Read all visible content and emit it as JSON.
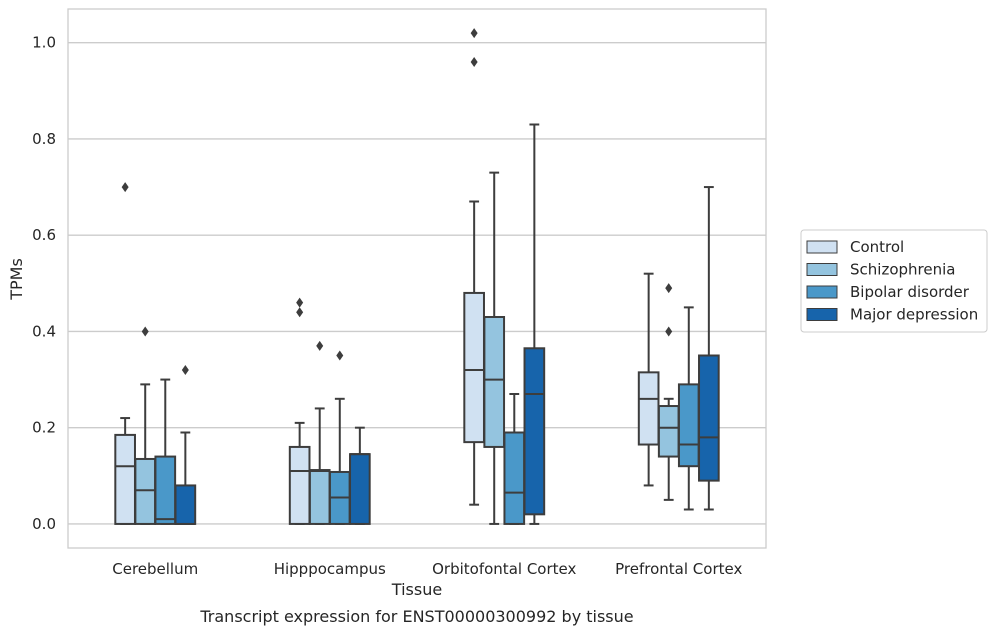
{
  "caption": "Transcript expression for ENST00000300992 by tissue",
  "chart_data": {
    "type": "box",
    "xlabel": "Tissue",
    "ylabel": "TPMs",
    "ylim": [
      -0.05,
      1.07
    ],
    "yticks": [
      0.0,
      0.2,
      0.4,
      0.6,
      0.8,
      1.0
    ],
    "ytick_labels": [
      "0.0",
      "0.2",
      "0.4",
      "0.6",
      "0.8",
      "1.0"
    ],
    "grid": "horizontal",
    "legend_position": "right",
    "categories": [
      "Cerebellum",
      "Hipppocampus",
      "Orbitofontal Cortex",
      "Prefrontal Cortex"
    ],
    "series": [
      {
        "name": "Control",
        "color": "#d0e1f2",
        "boxes": [
          {
            "whislo": 0.0,
            "q1": 0.0,
            "med": 0.12,
            "q3": 0.185,
            "whishi": 0.22,
            "fliers": [
              0.7
            ]
          },
          {
            "whislo": 0.0,
            "q1": 0.0,
            "med": 0.11,
            "q3": 0.16,
            "whishi": 0.21,
            "fliers": [
              0.44,
              0.46
            ]
          },
          {
            "whislo": 0.04,
            "q1": 0.17,
            "med": 0.32,
            "q3": 0.48,
            "whishi": 0.67,
            "fliers": [
              0.96,
              1.02
            ]
          },
          {
            "whislo": 0.08,
            "q1": 0.165,
            "med": 0.26,
            "q3": 0.315,
            "whishi": 0.52,
            "fliers": []
          }
        ]
      },
      {
        "name": "Schizophrenia",
        "color": "#94c4df",
        "boxes": [
          {
            "whislo": 0.0,
            "q1": 0.0,
            "med": 0.07,
            "q3": 0.135,
            "whishi": 0.29,
            "fliers": [
              0.4
            ]
          },
          {
            "whislo": 0.0,
            "q1": 0.0,
            "med": 0.11,
            "q3": 0.112,
            "whishi": 0.24,
            "fliers": [
              0.37
            ]
          },
          {
            "whislo": 0.0,
            "q1": 0.16,
            "med": 0.3,
            "q3": 0.43,
            "whishi": 0.73,
            "fliers": []
          },
          {
            "whislo": 0.05,
            "q1": 0.14,
            "med": 0.2,
            "q3": 0.245,
            "whishi": 0.26,
            "fliers": [
              0.4,
              0.49
            ]
          }
        ]
      },
      {
        "name": "Bipolar disorder",
        "color": "#4a98c9",
        "boxes": [
          {
            "whislo": 0.0,
            "q1": 0.0,
            "med": 0.01,
            "q3": 0.14,
            "whishi": 0.3,
            "fliers": []
          },
          {
            "whislo": 0.0,
            "q1": 0.0,
            "med": 0.055,
            "q3": 0.108,
            "whishi": 0.26,
            "fliers": [
              0.35
            ]
          },
          {
            "whislo": 0.0,
            "q1": 0.0,
            "med": 0.065,
            "q3": 0.19,
            "whishi": 0.27,
            "fliers": []
          },
          {
            "whislo": 0.03,
            "q1": 0.12,
            "med": 0.165,
            "q3": 0.29,
            "whishi": 0.45,
            "fliers": []
          }
        ]
      },
      {
        "name": "Major depression",
        "color": "#1764ab",
        "boxes": [
          {
            "whislo": 0.0,
            "q1": 0.0,
            "med": 0.0,
            "q3": 0.08,
            "whishi": 0.19,
            "fliers": [
              0.32
            ]
          },
          {
            "whislo": 0.0,
            "q1": 0.0,
            "med": 0.145,
            "q3": 0.145,
            "whishi": 0.2,
            "fliers": []
          },
          {
            "whislo": 0.0,
            "q1": 0.02,
            "med": 0.27,
            "q3": 0.365,
            "whishi": 0.83,
            "fliers": []
          },
          {
            "whislo": 0.03,
            "q1": 0.09,
            "med": 0.18,
            "q3": 0.35,
            "whishi": 0.7,
            "fliers": []
          }
        ]
      }
    ]
  }
}
